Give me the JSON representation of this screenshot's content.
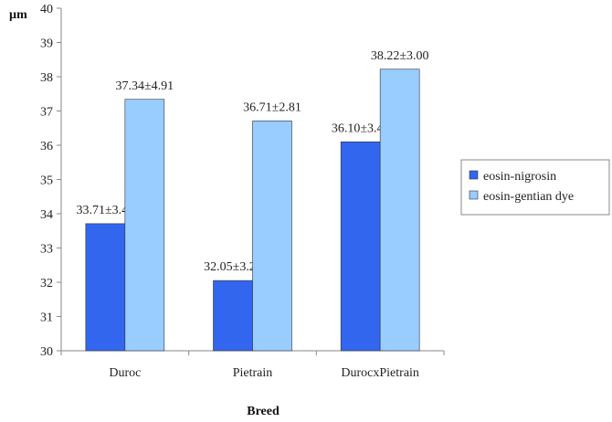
{
  "chart_data": {
    "type": "bar",
    "title": "",
    "xlabel": "Breed",
    "ylabel": "µm",
    "ylim": [
      30,
      40
    ],
    "yticks": [
      30,
      31,
      32,
      33,
      34,
      35,
      36,
      37,
      38,
      39,
      40
    ],
    "categories": [
      "Duroc",
      "Pietrain",
      "DurocxPietrain"
    ],
    "series": [
      {
        "name": "eosin-nigrosin",
        "color": "#3366ee",
        "values": [
          33.71,
          32.05,
          36.1
        ],
        "labels": [
          "33.71±3.42",
          "32.05±3.23",
          "36.10±3.43"
        ]
      },
      {
        "name": "eosin-gentian dye",
        "color": "#99ccff",
        "values": [
          37.34,
          36.71,
          38.22
        ],
        "labels": [
          "37.34±4.91",
          "36.71±2.81",
          "38.22±3.00"
        ]
      }
    ],
    "legend_position": "right",
    "grid": false
  }
}
